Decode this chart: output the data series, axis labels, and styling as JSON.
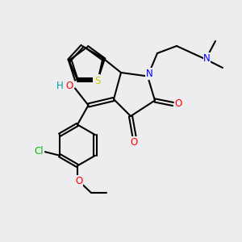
{
  "bg_color": "#ededef",
  "bond_color": "#000000",
  "bond_lw": 1.5,
  "atom_colors": {
    "N": "#0000ff",
    "O": "#ff0000",
    "S": "#cccc00",
    "Cl": "#00bb00",
    "H_teal": "#009999"
  },
  "font_size_label": 8.5,
  "font_size_small": 7.5
}
